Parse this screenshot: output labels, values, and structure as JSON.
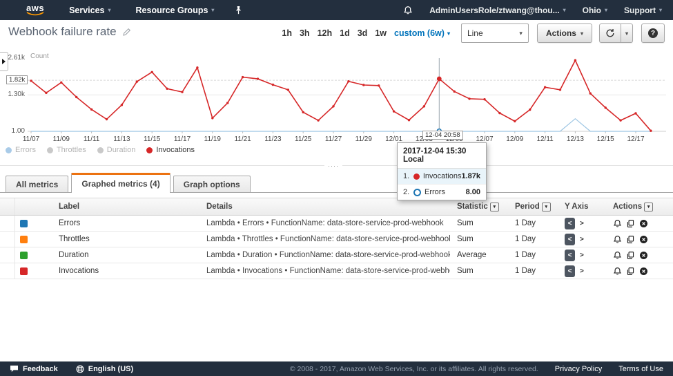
{
  "icons": {
    "caret_down": "▾",
    "grip_dots": "····",
    "help": "?",
    "angle_left": "<",
    "angle_right": ">"
  },
  "nav": {
    "logo": "aws",
    "items": [
      "Services",
      "Resource Groups"
    ],
    "account": "AdminUsersRole/ztwang@thou...",
    "region": "Ohio",
    "support": "Support"
  },
  "header": {
    "title": "Webhook failure rate"
  },
  "toolbar": {
    "ranges": [
      "1h",
      "3h",
      "12h",
      "1d",
      "3d",
      "1w"
    ],
    "custom_range": "custom (6w)",
    "chart_type": "Line",
    "actions_label": "Actions"
  },
  "chart_data": {
    "type": "line",
    "title": "Webhook failure rate",
    "ylabel": "Count",
    "ylim": [
      0,
      2610
    ],
    "y_tick_labels": [
      "2.61k",
      "1.30k",
      "1.00"
    ],
    "y_hover_value": "1.82k",
    "x_start_date": "11/07",
    "x_end_date": "12/18",
    "x_tick_labels": [
      "11/07",
      "11/09",
      "11/11",
      "11/13",
      "11/15",
      "11/17",
      "11/19",
      "11/21",
      "11/23",
      "11/25",
      "11/27",
      "11/29",
      "12/01",
      "12/03",
      "12/05",
      "12/07",
      "12/09",
      "12/11",
      "12/13",
      "12/15",
      "12/17"
    ],
    "crosshair": {
      "x_label": "12-04 20:58",
      "index": 27
    },
    "series": [
      {
        "name": "Invocations",
        "color": "#d62728",
        "values": [
          1800,
          1370,
          1740,
          1220,
          780,
          430,
          940,
          1770,
          2110,
          1520,
          1400,
          2270,
          470,
          1010,
          1930,
          1870,
          1660,
          1480,
          680,
          390,
          890,
          1780,
          1650,
          1630,
          710,
          400,
          890,
          1870,
          1420,
          1160,
          1140,
          650,
          360,
          770,
          1570,
          1480,
          2530,
          1350,
          840,
          390,
          640,
          20
        ]
      },
      {
        "name": "Errors",
        "color": "#9cc5e3",
        "values": [
          0,
          0,
          0,
          0,
          0,
          0,
          0,
          0,
          0,
          0,
          0,
          0,
          0,
          0,
          0,
          0,
          0,
          0,
          0,
          0,
          0,
          0,
          0,
          0,
          0,
          0,
          0,
          8,
          0,
          0,
          0,
          0,
          0,
          0,
          0,
          0,
          450,
          0,
          0,
          0,
          0,
          0
        ]
      }
    ],
    "legend_position": "bottom",
    "legend": [
      {
        "label": "Errors",
        "color": "#a9cbe8",
        "active": false
      },
      {
        "label": "Throttles",
        "color": "#c9c9c9",
        "active": false
      },
      {
        "label": "Duration",
        "color": "#c9c9c9",
        "active": false
      },
      {
        "label": "Invocations",
        "color": "#d62728",
        "active": true
      }
    ]
  },
  "tooltip": {
    "title": "2017-12-04 15:30 Local",
    "rows": [
      {
        "num": "1.",
        "label": "Invocations",
        "value": "1.87k",
        "marker": "filled-red",
        "highlight": true
      },
      {
        "num": "2.",
        "label": "Errors",
        "value": "8.00",
        "marker": "hollow-blue",
        "highlight": false
      }
    ]
  },
  "tabs": [
    {
      "label": "All metrics",
      "active": false
    },
    {
      "label": "Graphed metrics (4)",
      "active": true
    },
    {
      "label": "Graph options",
      "active": false
    }
  ],
  "table": {
    "headers": [
      "Label",
      "Details",
      "Statistic",
      "Period",
      "Y Axis",
      "Actions"
    ],
    "rows": [
      {
        "color": "#1f77b4",
        "label": "Errors",
        "details": "Lambda • Errors • FunctionName: data-store-service-prod-webhook",
        "statistic": "Sum",
        "period": "1 Day"
      },
      {
        "color": "#ff7f0e",
        "label": "Throttles",
        "details": "Lambda • Throttles • FunctionName: data-store-service-prod-webhook",
        "statistic": "Sum",
        "period": "1 Day"
      },
      {
        "color": "#2ca02c",
        "label": "Duration",
        "details": "Lambda • Duration • FunctionName: data-store-service-prod-webhook",
        "statistic": "Average",
        "period": "1 Day"
      },
      {
        "color": "#d62728",
        "label": "Invocations",
        "details": "Lambda • Invocations • FunctionName: data-store-service-prod-webhook",
        "statistic": "Sum",
        "period": "1 Day"
      }
    ]
  },
  "footer": {
    "feedback": "Feedback",
    "language": "English (US)",
    "copyright": "© 2008 - 2017, Amazon Web Services, Inc. or its affiliates. All rights reserved.",
    "privacy": "Privacy Policy",
    "terms": "Terms of Use"
  }
}
